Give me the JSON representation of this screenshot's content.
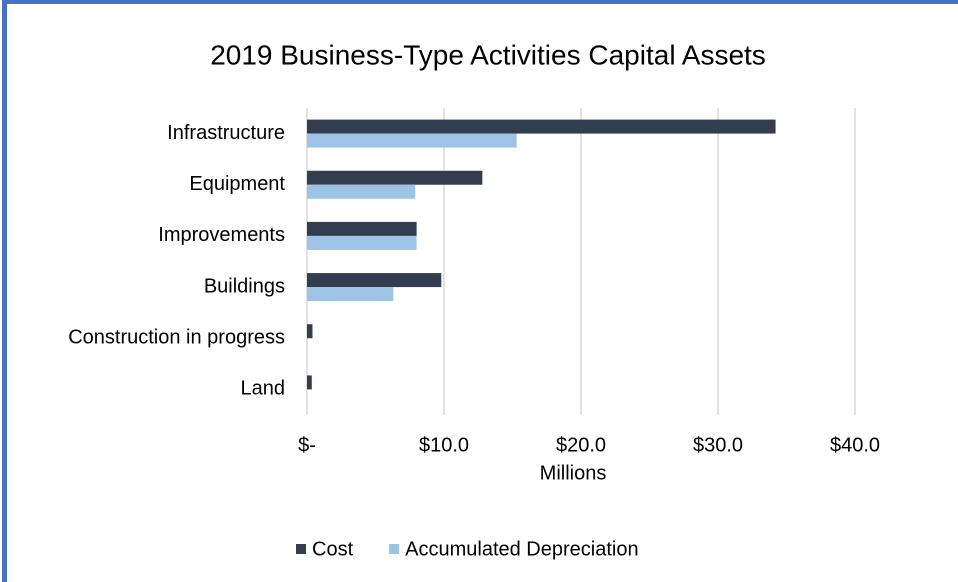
{
  "chart_data": {
    "type": "hbar",
    "title": "2019 Business-Type Activities Capital Assets",
    "categories": [
      "Infrastructure",
      "Equipment",
      "Improvements",
      "Buildings",
      "Construction in progress",
      "Land"
    ],
    "series": [
      {
        "name": "Cost",
        "color": "#323e4f",
        "values": [
          34.2,
          12.8,
          8.0,
          9.8,
          0.4,
          0.35
        ]
      },
      {
        "name": "Accumulated Depreciation",
        "color": "#9dc3e6",
        "values": [
          15.3,
          7.9,
          8.0,
          6.3,
          0,
          0
        ]
      }
    ],
    "xlim": [
      0,
      40
    ],
    "xticks": [
      {
        "value": 0,
        "label": "$-"
      },
      {
        "value": 10,
        "label": "$10.0"
      },
      {
        "value": 20,
        "label": "$20.0"
      },
      {
        "value": 30,
        "label": "$30.0"
      },
      {
        "value": 40,
        "label": "$40.0"
      }
    ],
    "xlabel": "Millions",
    "grid": true,
    "legend": "bottom"
  }
}
